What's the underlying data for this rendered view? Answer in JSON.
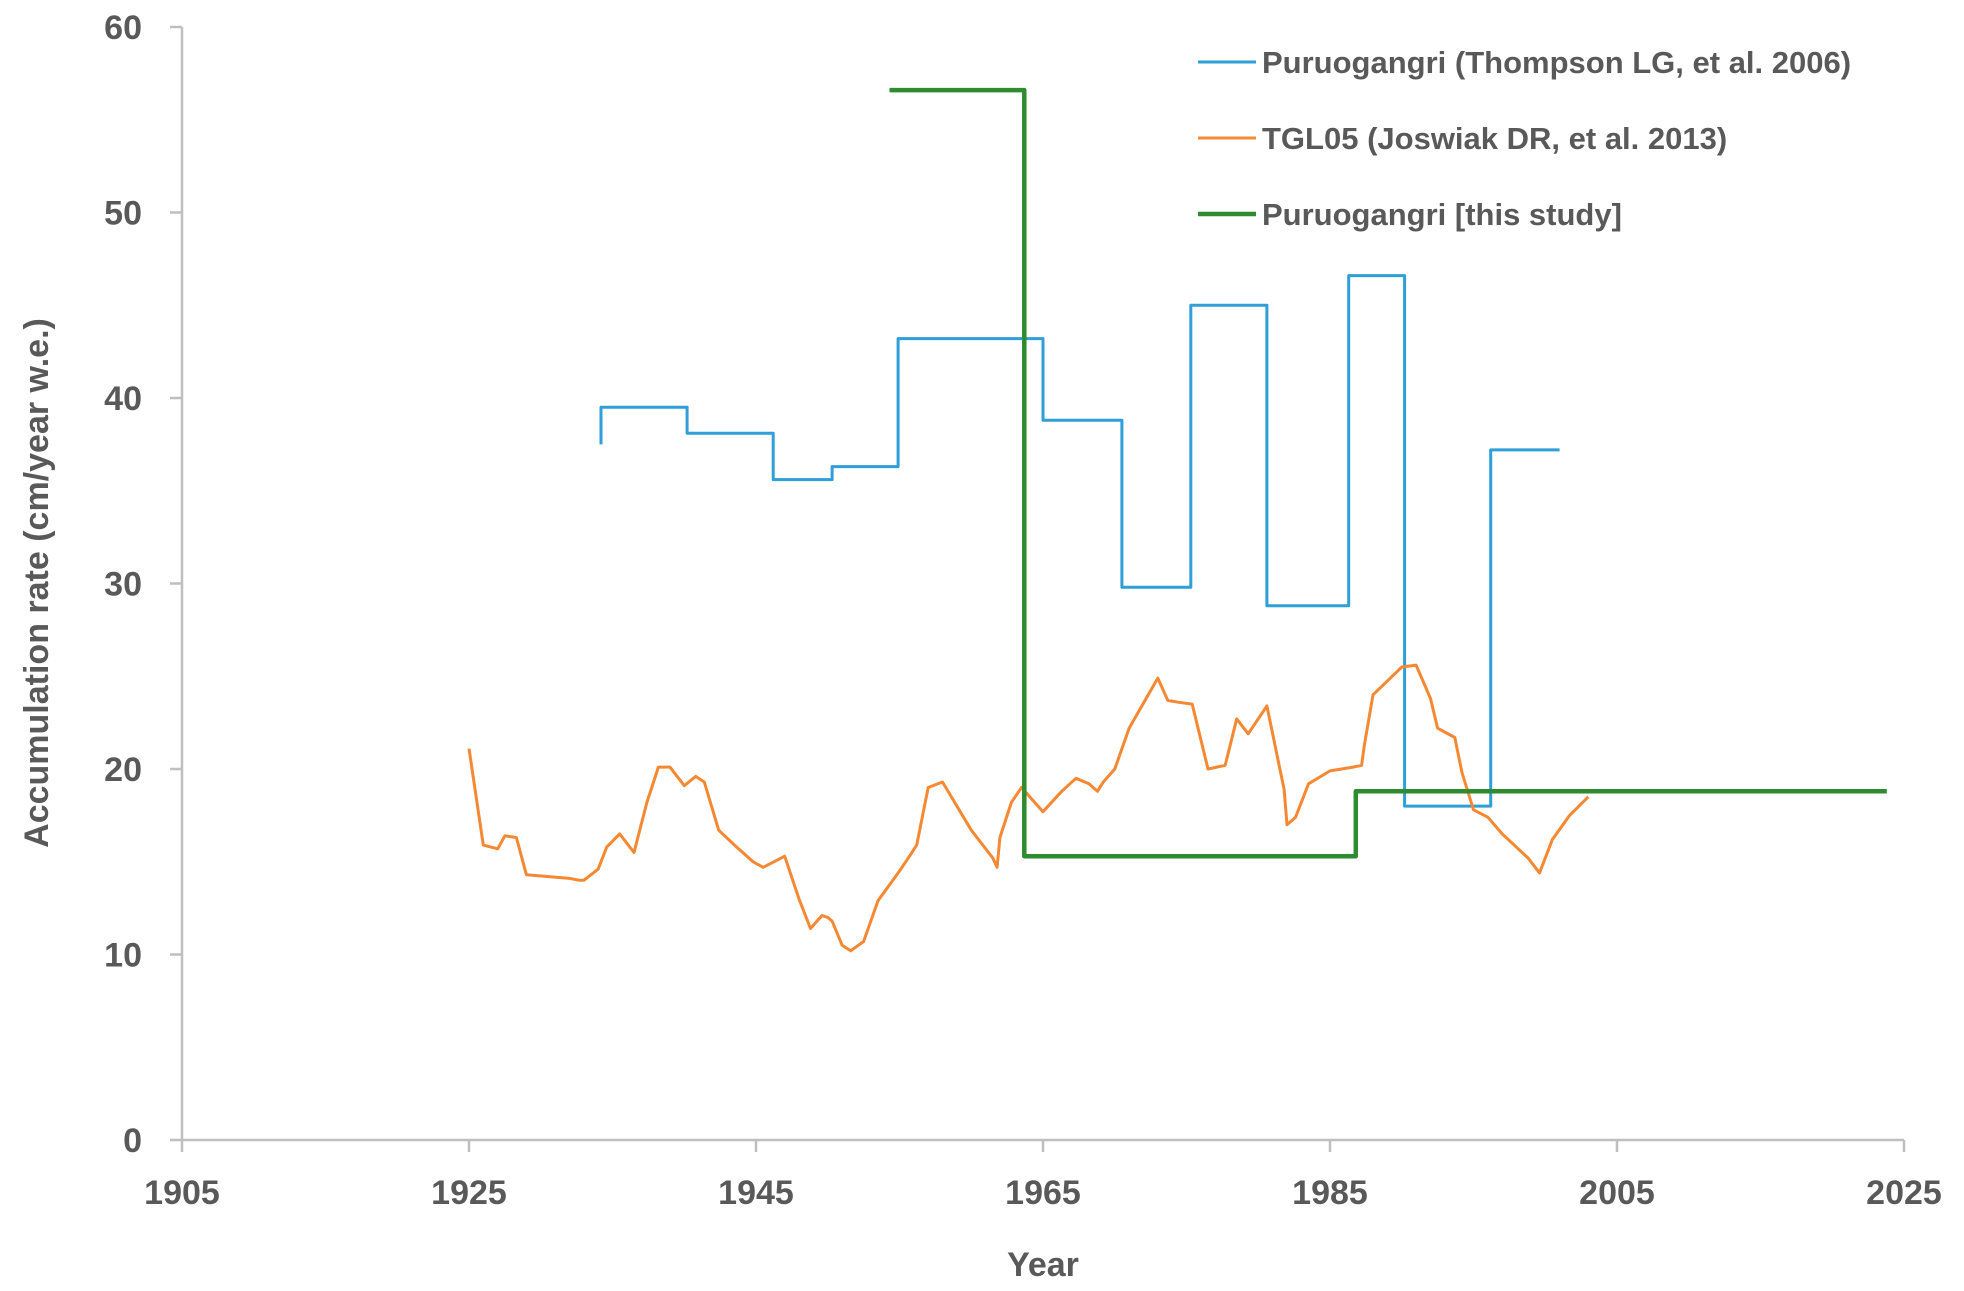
{
  "chart_data": {
    "type": "line",
    "xlabel": "Year",
    "ylabel": "Accumulation rate (cm/year w.e.)",
    "xlim": [
      1905,
      2025
    ],
    "ylim": [
      0,
      60
    ],
    "xticks": [
      1905,
      1925,
      1945,
      1965,
      1985,
      2005,
      2025
    ],
    "yticks": [
      0,
      10,
      20,
      30,
      40,
      50,
      60
    ],
    "grid": false,
    "legend_position": "top-right",
    "series": [
      {
        "name": "Puruogangri (Thompson LG, et al. 2006)",
        "color": "#2E9FD8",
        "step": true,
        "x": [
          1934.2,
          1934.2,
          1940.2,
          1940.2,
          1946.2,
          1946.2,
          1950.3,
          1950.3,
          1954.9,
          1954.9,
          1965,
          1965,
          1970.5,
          1970.5,
          1975.3,
          1975.3,
          1980.6,
          1980.6,
          1986.3,
          1986.3,
          1990.2,
          1990.2,
          1996.2,
          1996.2,
          2001
        ],
        "y": [
          37.5,
          39.5,
          39.5,
          38.1,
          38.1,
          35.6,
          35.6,
          36.3,
          36.3,
          43.2,
          43.2,
          38.8,
          38.8,
          29.8,
          29.8,
          45.0,
          45.0,
          28.8,
          28.8,
          46.6,
          46.6,
          18.0,
          18.0,
          37.2,
          37.2
        ]
      },
      {
        "name": "TGL05 (Joswiak DR, et al. 2013)",
        "color": "#F58833",
        "step": false,
        "x": [
          1925,
          1926,
          1927,
          1927.5,
          1928.3,
          1929,
          1932,
          1932.7,
          1933,
          1934,
          1934.6,
          1935.5,
          1936.5,
          1937.4,
          1938.2,
          1939,
          1940,
          1940.8,
          1941.4,
          1942.4,
          1943.5,
          1944.8,
          1945.5,
          1947,
          1948,
          1948.8,
          1949.6,
          1950,
          1950.3,
          1951,
          1951.6,
          1952.5,
          1953.5,
          1955,
          1955.7,
          1956.2,
          1957,
          1958,
          1960,
          1961.5,
          1961.8,
          1962,
          1962.8,
          1963.5,
          1965,
          1966.3,
          1967.3,
          1968.2,
          1968.8,
          1969.2,
          1970,
          1971,
          1973,
          1973.7,
          1974.4,
          1975.4,
          1976.5,
          1977.7,
          1978.5,
          1979.3,
          1980.6,
          1981.8,
          1982,
          1982.6,
          1983.5,
          1985,
          1986.6,
          1987.2,
          1987.4,
          1988,
          1990,
          1991,
          1992,
          1992.5,
          1993.7,
          1994.2,
          1995,
          1996,
          1997,
          1998.8,
          1999.6,
          2000.5,
          2001.7,
          2003
        ],
        "y": [
          21.1,
          15.9,
          15.7,
          16.4,
          16.3,
          14.3,
          14.1,
          14.0,
          14.0,
          14.6,
          15.8,
          16.5,
          15.5,
          18.2,
          20.1,
          20.1,
          19.1,
          19.6,
          19.3,
          16.7,
          15.9,
          15.0,
          14.7,
          15.3,
          13.0,
          11.4,
          12.1,
          12.0,
          11.8,
          10.5,
          10.2,
          10.7,
          12.9,
          14.5,
          15.3,
          15.9,
          19.0,
          19.3,
          16.7,
          15.2,
          14.7,
          16.3,
          18.2,
          19.0,
          17.7,
          18.8,
          19.5,
          19.2,
          18.8,
          19.3,
          20.0,
          22.2,
          24.9,
          23.7,
          23.6,
          23.5,
          20.0,
          20.2,
          22.7,
          21.9,
          23.4,
          18.9,
          17.0,
          17.4,
          19.2,
          19.9,
          20.1,
          20.2,
          21.3,
          24.0,
          25.5,
          25.6,
          23.8,
          22.2,
          21.7,
          19.8,
          17.8,
          17.4,
          16.5,
          15.2,
          14.4,
          16.2,
          17.5,
          18.5
        ]
      },
      {
        "name": "Puruogangri [this study]",
        "color": "#2F8B2F",
        "step": true,
        "x": [
          1954.3,
          1963.7,
          1963.7,
          1986.8,
          1986.8,
          2023.8
        ],
        "y": [
          56.6,
          56.6,
          15.3,
          15.3,
          18.8,
          18.8
        ]
      }
    ]
  }
}
